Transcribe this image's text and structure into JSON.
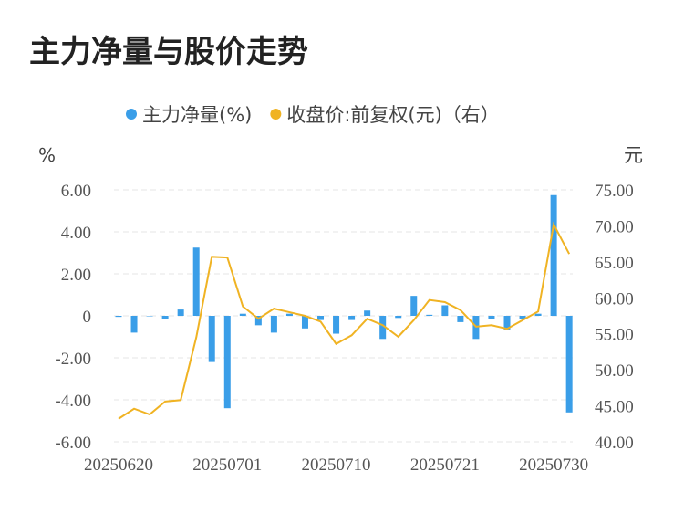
{
  "chart_data": {
    "type": "bar_line",
    "title": "主力净量与股价走势",
    "y_label": "%",
    "y2_label": "元",
    "categories": [
      "20250620",
      null,
      null,
      null,
      null,
      null,
      null,
      "20250701",
      null,
      null,
      null,
      null,
      null,
      null,
      "20250710",
      null,
      null,
      null,
      null,
      null,
      null,
      "20250721",
      null,
      null,
      null,
      null,
      null,
      null,
      "20250730",
      null
    ],
    "series": [
      {
        "name": "主力净量(%)",
        "color": "#3a9ee8",
        "kind": "bar",
        "axis": "y",
        "values": [
          -0.05,
          -0.8,
          -0.02,
          -0.15,
          0.3,
          3.25,
          -2.2,
          -4.4,
          0.1,
          -0.45,
          -0.8,
          0.1,
          -0.6,
          -0.2,
          -0.85,
          -0.2,
          0.25,
          -1.1,
          -0.1,
          0.95,
          0.05,
          0.5,
          -0.3,
          -1.1,
          -0.15,
          -0.65,
          -0.15,
          0.1,
          5.75,
          -4.6
        ]
      },
      {
        "name": "收盘价:前复权(元)（右）",
        "color": "#f0b323",
        "kind": "line",
        "axis": "y2",
        "values": [
          43.2,
          44.6,
          43.8,
          45.6,
          45.8,
          54.5,
          65.7,
          65.6,
          58.8,
          57.1,
          58.5,
          58.0,
          57.5,
          56.7,
          53.6,
          54.8,
          57.1,
          56.2,
          54.6,
          56.9,
          59.7,
          59.4,
          58.3,
          56.0,
          56.2,
          55.7,
          56.9,
          58.1,
          70.2,
          66.1
        ]
      }
    ],
    "ylim": [
      -6,
      6
    ],
    "yticks": [
      {
        "value": 6,
        "label": "6.00"
      },
      {
        "value": 4,
        "label": "4.00"
      },
      {
        "value": 2,
        "label": "2.00"
      },
      0,
      {
        "value": -2,
        "label": "-2.00"
      },
      {
        "value": -4,
        "label": "-4.00"
      },
      {
        "value": -6,
        "label": "-6.00"
      }
    ],
    "y2lim": [
      40,
      75
    ],
    "y2ticks": [
      {
        "value": 75,
        "label": "75.00"
      },
      {
        "value": 70,
        "label": "70.00"
      },
      {
        "value": 65,
        "label": "65.00"
      },
      {
        "value": 60,
        "label": "60.00"
      },
      {
        "value": 55,
        "label": "55.00"
      },
      {
        "value": 50,
        "label": "50.00"
      },
      {
        "value": 45,
        "label": "45.00"
      },
      {
        "value": 40,
        "label": "40.00"
      }
    ],
    "grid": true,
    "legend": "top"
  }
}
